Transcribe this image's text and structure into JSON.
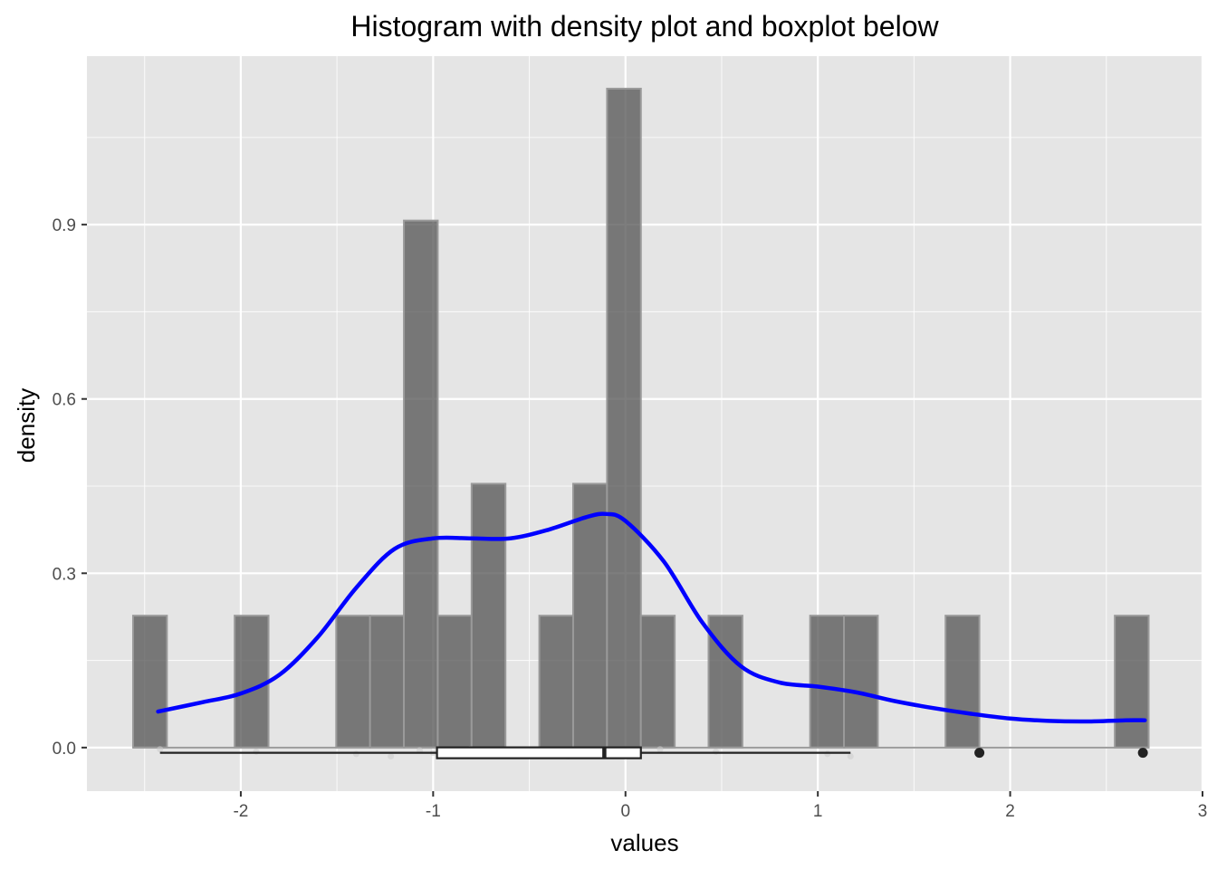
{
  "chart_data": {
    "type": "histogram",
    "title": "Histogram with density plot and boxplot below",
    "xlabel": "values",
    "ylabel": "density",
    "xlim": [
      -2.8,
      3.0
    ],
    "ylim": [
      -0.075,
      1.19
    ],
    "x_ticks": [
      -2,
      -1,
      0,
      1,
      2,
      3
    ],
    "x_tick_labels": [
      "-2",
      "-1",
      "0",
      "1",
      "2",
      "3"
    ],
    "y_ticks": [
      0.0,
      0.3,
      0.6,
      0.9
    ],
    "y_tick_labels": [
      "0.0",
      "0.3",
      "0.6",
      "0.9"
    ],
    "grid": true,
    "colors": {
      "panel_background": "#e5e5e5",
      "grid": "#ffffff",
      "bar_fill": "#595959",
      "bar_outline": "#9a9a9a",
      "density_line": "#0000ff",
      "boxplot_outline": "#222222",
      "boxplot_fill": "#ffffff",
      "outlier_point": "#222222"
    },
    "histogram": {
      "bin_width": 0.176,
      "bins": [
        {
          "x0": -2.56,
          "x1": -2.384,
          "density": 0.227
        },
        {
          "x0": -2.032,
          "x1": -1.856,
          "density": 0.227
        },
        {
          "x0": -1.504,
          "x1": -1.328,
          "density": 0.227
        },
        {
          "x0": -1.328,
          "x1": -1.152,
          "density": 0.227
        },
        {
          "x0": -1.152,
          "x1": -0.976,
          "density": 0.907
        },
        {
          "x0": -0.976,
          "x1": -0.8,
          "density": 0.227
        },
        {
          "x0": -0.8,
          "x1": -0.624,
          "density": 0.454
        },
        {
          "x0": -0.448,
          "x1": -0.272,
          "density": 0.227
        },
        {
          "x0": -0.272,
          "x1": -0.096,
          "density": 0.454
        },
        {
          "x0": -0.096,
          "x1": 0.08,
          "density": 1.134
        },
        {
          "x0": 0.08,
          "x1": 0.256,
          "density": 0.227
        },
        {
          "x0": 0.432,
          "x1": 0.608,
          "density": 0.227
        },
        {
          "x0": 0.96,
          "x1": 1.136,
          "density": 0.227
        },
        {
          "x0": 1.136,
          "x1": 1.312,
          "density": 0.227
        },
        {
          "x0": 1.664,
          "x1": 1.84,
          "density": 0.227
        },
        {
          "x0": 2.544,
          "x1": 2.72,
          "density": 0.227
        }
      ]
    },
    "series": [
      {
        "type": "density",
        "x": [
          -2.43,
          -2.2,
          -2.0,
          -1.8,
          -1.6,
          -1.4,
          -1.2,
          -1.0,
          -0.8,
          -0.6,
          -0.4,
          -0.2,
          -0.1,
          0.0,
          0.2,
          0.4,
          0.6,
          0.8,
          1.0,
          1.2,
          1.4,
          1.6,
          1.8,
          2.0,
          2.2,
          2.4,
          2.6,
          2.7
        ],
        "y": [
          0.062,
          0.078,
          0.093,
          0.125,
          0.19,
          0.275,
          0.342,
          0.36,
          0.36,
          0.36,
          0.375,
          0.397,
          0.402,
          0.39,
          0.32,
          0.215,
          0.14,
          0.112,
          0.105,
          0.095,
          0.08,
          0.068,
          0.058,
          0.05,
          0.046,
          0.045,
          0.047,
          0.047
        ]
      }
    ],
    "boxplot": {
      "y_position": -0.009,
      "whisker_low": -2.42,
      "q1": -0.98,
      "median": -0.11,
      "q3": 0.08,
      "whisker_high": 1.17,
      "outliers": [
        1.84,
        2.69
      ]
    },
    "rug_points": [
      -2.42,
      -1.92,
      -1.4,
      -1.22,
      -1.07,
      -1.0,
      -0.88,
      -0.81,
      -0.73,
      -0.7,
      -0.3,
      -0.15,
      -0.03,
      0.02,
      0.18,
      0.47,
      1.05,
      1.17
    ]
  }
}
